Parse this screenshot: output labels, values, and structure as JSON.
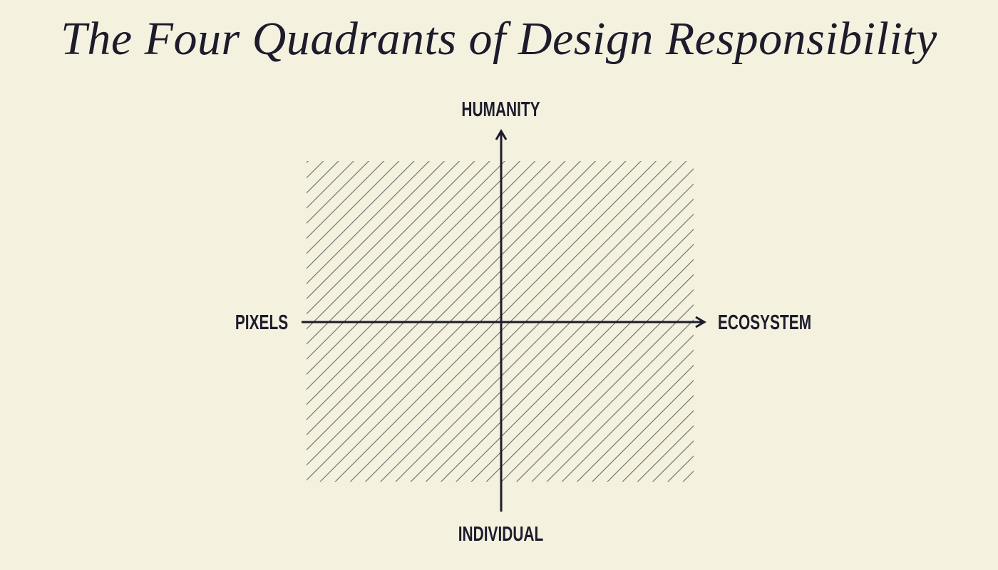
{
  "title": "The Four Quadrants of Design Responsibility",
  "axes": {
    "top": "HUMANITY",
    "bottom": "INDIVIDUAL",
    "left": "PIXELS",
    "right": "ECOSYSTEM"
  },
  "colors": {
    "background": "#f4f2df",
    "ink": "#1d1b2c",
    "hatch": "#6b6a66"
  }
}
